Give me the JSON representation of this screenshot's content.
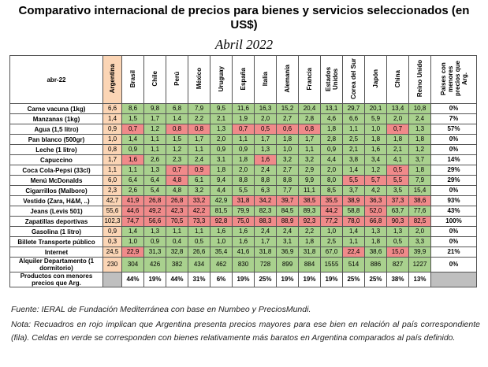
{
  "header": {
    "title": "Comparativo internacional de precios para bienes y servicios seleccionados (en US$)",
    "subtitle": "Abril 2022"
  },
  "table": {
    "corner": "abr-22",
    "columns": [
      "Argentina",
      "Brasil",
      "Chile",
      "Perú",
      "México",
      "Uruguay",
      "España",
      "Italia",
      "Alemania",
      "Francia",
      "Estados Unidos",
      "Corea del Sur",
      "Japón",
      "China",
      "Reino Unido",
      "Paises con menores precios que Arg."
    ],
    "rows": [
      {
        "label": "Carne vacuna (1kg)",
        "values": [
          "6,6",
          "8,6",
          "9,8",
          "6,8",
          "7,9",
          "9,5",
          "11,6",
          "16,3",
          "15,2",
          "20,4",
          "13,1",
          "29,7",
          "20,1",
          "13,4",
          "10,8"
        ],
        "share": "0%"
      },
      {
        "label": "Manzanas (1kg)",
        "values": [
          "1,4",
          "1,5",
          "1,7",
          "1,4",
          "2,2",
          "2,1",
          "1,9",
          "2,0",
          "2,7",
          "2,8",
          "4,6",
          "6,6",
          "5,9",
          "2,0",
          "2,4"
        ],
        "share": "7%"
      },
      {
        "label": "Agua (1,5 litro)",
        "values": [
          "0,9",
          "0,7",
          "1,2",
          "0,8",
          "0,8",
          "1,3",
          "0,7",
          "0,5",
          "0,6",
          "0,8",
          "1,8",
          "1,1",
          "1,0",
          "0,7",
          "1,3"
        ],
        "share": "57%"
      },
      {
        "label": "Pan blanco (500gr)",
        "values": [
          "1,0",
          "1,4",
          "1,1",
          "1,5",
          "1,7",
          "2,0",
          "1,1",
          "1,7",
          "1,8",
          "1,7",
          "2,8",
          "2,5",
          "1,8",
          "1,8",
          "1,8"
        ],
        "share": "0%"
      },
      {
        "label": "Leche (1 litro)",
        "values": [
          "0,8",
          "0,9",
          "1,1",
          "1,2",
          "1,1",
          "0,9",
          "0,9",
          "1,3",
          "1,0",
          "1,1",
          "0,9",
          "2,1",
          "1,6",
          "2,1",
          "1,2"
        ],
        "share": "0%"
      },
      {
        "label": "Capuccino",
        "values": [
          "1,7",
          "1,6",
          "2,6",
          "2,3",
          "2,4",
          "3,1",
          "1,8",
          "1,6",
          "3,2",
          "3,2",
          "4,4",
          "3,8",
          "3,4",
          "4,1",
          "3,7"
        ],
        "share": "14%"
      },
      {
        "label": "Coca Cola-Pepsi (33cl)",
        "values": [
          "1,1",
          "1,1",
          "1,3",
          "0,7",
          "0,9",
          "1,8",
          "2,0",
          "2,4",
          "2,7",
          "2,9",
          "2,0",
          "1,4",
          "1,2",
          "0,5",
          "1,8"
        ],
        "share": "29%"
      },
      {
        "label": "Menú McDonalds",
        "values": [
          "6,0",
          "6,4",
          "6,4",
          "4,8",
          "6,1",
          "9,4",
          "8,8",
          "8,8",
          "8,8",
          "9,9",
          "8,0",
          "5,5",
          "5,7",
          "5,5",
          "7,9"
        ],
        "share": "29%"
      },
      {
        "label": "Cigarrillos (Malboro)",
        "values": [
          "2,3",
          "2,6",
          "5,4",
          "4,8",
          "3,2",
          "4,4",
          "5,5",
          "6,3",
          "7,7",
          "11,1",
          "8,5",
          "3,7",
          "4,2",
          "3,5",
          "15,4"
        ],
        "share": "0%"
      },
      {
        "label": "Vestido (Zara, H&M, ..)",
        "values": [
          "42,7",
          "41,9",
          "26,8",
          "26,8",
          "33,2",
          "42,9",
          "31,8",
          "34,2",
          "39,7",
          "38,5",
          "35,5",
          "38,9",
          "36,3",
          "37,3",
          "38,6"
        ],
        "share": "93%"
      },
      {
        "label": "Jeans (Levis 501)",
        "values": [
          "55,6",
          "44,6",
          "49,2",
          "42,3",
          "42,2",
          "81,5",
          "79,9",
          "82,3",
          "84,5",
          "89,3",
          "44,2",
          "58,8",
          "52,0",
          "63,7",
          "77,6"
        ],
        "share": "43%"
      },
      {
        "label": "Zapatillas deportivas",
        "values": [
          "102,3",
          "74,7",
          "56,6",
          "70,5",
          "73,3",
          "92,8",
          "75,0",
          "88,3",
          "88,9",
          "92,3",
          "77,2",
          "78,0",
          "66,8",
          "90,3",
          "82,5"
        ],
        "share": "100%"
      },
      {
        "label": "Gasolina (1 litro)",
        "values": [
          "0,9",
          "1,4",
          "1,3",
          "1,1",
          "1,1",
          "1,6",
          "1,6",
          "2,4",
          "2,4",
          "2,2",
          "1,0",
          "1,4",
          "1,3",
          "1,3",
          "2,0"
        ],
        "share": "0%"
      },
      {
        "label": "Billete Transporte público",
        "values": [
          "0,3",
          "1,0",
          "0,9",
          "0,4",
          "0,5",
          "1,0",
          "1,6",
          "1,7",
          "3,1",
          "1,8",
          "2,5",
          "1,1",
          "1,8",
          "0,5",
          "3,3"
        ],
        "share": "0%"
      },
      {
        "label": "Internet",
        "values": [
          "24,5",
          "22,9",
          "31,3",
          "32,8",
          "26,6",
          "35,4",
          "41,6",
          "31,8",
          "36,9",
          "31,8",
          "67,0",
          "22,4",
          "38,6",
          "15,0",
          "39,9"
        ],
        "share": "21%"
      },
      {
        "label": "Alquiler Departamento (1 dormitorio)",
        "values": [
          "230",
          "304",
          "426",
          "382",
          "434",
          "462",
          "830",
          "728",
          "899",
          "884",
          "1555",
          "514",
          "886",
          "827",
          "1227"
        ],
        "share": "0%"
      }
    ],
    "footer": {
      "label": "Productos con menores precios que Arg.",
      "values": [
        "44%",
        "19%",
        "44%",
        "31%",
        "6%",
        "19%",
        "25%",
        "19%",
        "19%",
        "19%",
        "25%",
        "25%",
        "38%",
        "13%"
      ]
    }
  },
  "notes": {
    "source": "Fuente: IERAL de Fundación Mediterránea con base en Numbeo y PreciosMundi.",
    "note": "Nota: Recuadros en rojo implican que Argentina presenta precios mayores para ese bien en relación al país correspondiente (fila). Celdas en verde se corresponden con bienes relativamente más baratos en Argentina comparados al país definido."
  }
}
